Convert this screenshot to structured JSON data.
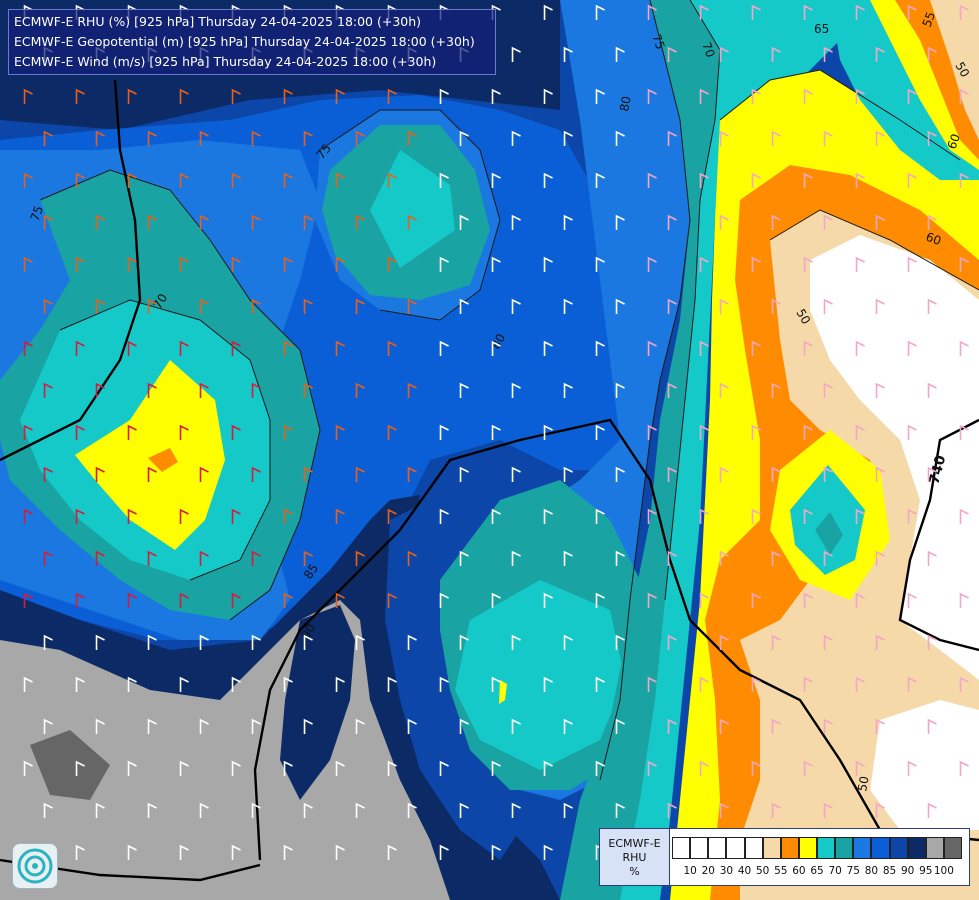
{
  "header": {
    "line1": "ECMWF-E RHU (%) [925 hPa] Thursday 24-04-2025 18:00 (+30h)",
    "line2": "ECMWF-E Geopotential (m) [925 hPa] Thursday 24-04-2025 18:00 (+30h)",
    "line3": "ECMWF-E Wind (m/s) [925 hPa] Thursday 24-04-2025 18:00 (+30h)"
  },
  "legend": {
    "title_model": "ECMWF-E",
    "title_var": "RHU",
    "title_unit": "%",
    "colors": [
      "#ffffff",
      "#ffffff",
      "#ffffff",
      "#ffffff",
      "#ffffff",
      "#f5d9a8",
      "#ff8c00",
      "#ffff00",
      "#16c9c9",
      "#1aa3a3",
      "#1a78e0",
      "#0b5fd6",
      "#0b46a8",
      "#0b2a66",
      "#a8a8a8",
      "#666666"
    ],
    "ticks": [
      "10",
      "20",
      "30",
      "40",
      "50",
      "55",
      "60",
      "65",
      "70",
      "75",
      "80",
      "85",
      "90",
      "95",
      "100"
    ]
  },
  "contour_labels": [
    "75",
    "70",
    "80",
    "75",
    "70",
    "75",
    "50",
    "60",
    "60",
    "55",
    "65",
    "50",
    "80",
    "85",
    "90",
    "740",
    "740",
    "50"
  ],
  "colors": {
    "rh_90": "#0b2a66",
    "rh_85": "#0b46a8",
    "rh_80": "#0b5fd6",
    "rh_75": "#1a78e0",
    "rh_70": "#1aa3a3",
    "rh_65": "#16c9c9",
    "rh_60": "#ffff00",
    "rh_55": "#ff8c00",
    "rh_50": "#f5d9a8",
    "rh_40": "#ffffff",
    "rh_95": "#a8a8a8",
    "rh_100": "#666666"
  }
}
